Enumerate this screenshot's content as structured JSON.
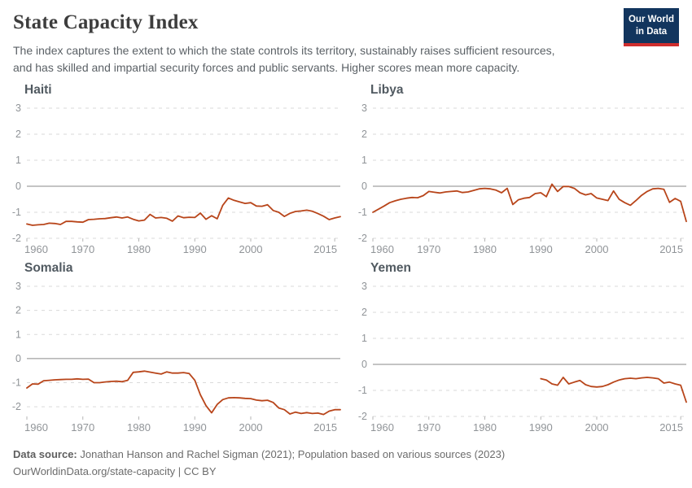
{
  "header": {
    "title": "State Capacity Index",
    "subtitle_lines": [
      "The index captures the extent to which the state controls its territory, sustainably raises sufficient resources,",
      "and has skilled and impartial security forces and public servants. Higher scores mean more capacity."
    ],
    "logo": {
      "line1": "Our World",
      "line2": "in Data",
      "bg_color": "#12355e",
      "accent_color": "#cf2d2d"
    }
  },
  "footer": {
    "source_label": "Data source:",
    "source_text": "Jonathan Hanson and Rachel Sigman (2021); Population based on various sources (2023)",
    "citation": "OurWorldinData.org/state-capacity | CC BY"
  },
  "style_colors": {
    "line": "#b8451a",
    "gridline": "#dadada",
    "zero_line": "#8a8a8a",
    "tick_label": "#909498"
  },
  "chart_data": [
    {
      "type": "line",
      "title": "Haiti",
      "xlim": [
        1960,
        2016
      ],
      "ylim": [
        -2,
        3
      ],
      "xticks": [
        1960,
        1970,
        1980,
        1990,
        2000,
        2015
      ],
      "yticks": [
        3,
        2,
        1,
        0,
        -1,
        -2
      ],
      "grid": "dashed",
      "line_color": "#b8451a",
      "years": [
        1960,
        1961,
        1962,
        1963,
        1964,
        1965,
        1966,
        1967,
        1968,
        1969,
        1970,
        1971,
        1972,
        1973,
        1974,
        1975,
        1976,
        1977,
        1978,
        1979,
        1980,
        1981,
        1982,
        1983,
        1984,
        1985,
        1986,
        1987,
        1988,
        1989,
        1990,
        1991,
        1992,
        1993,
        1994,
        1995,
        1996,
        1997,
        1998,
        1999,
        2000,
        2001,
        2002,
        2003,
        2004,
        2005,
        2006,
        2007,
        2008,
        2009,
        2010,
        2011,
        2012,
        2013,
        2014,
        2015,
        2016
      ],
      "values": [
        -1.45,
        -1.5,
        -1.48,
        -1.47,
        -1.42,
        -1.43,
        -1.47,
        -1.35,
        -1.35,
        -1.37,
        -1.38,
        -1.28,
        -1.27,
        -1.25,
        -1.24,
        -1.21,
        -1.18,
        -1.22,
        -1.18,
        -1.27,
        -1.33,
        -1.3,
        -1.08,
        -1.22,
        -1.2,
        -1.23,
        -1.34,
        -1.14,
        -1.21,
        -1.19,
        -1.2,
        -1.03,
        -1.27,
        -1.13,
        -1.25,
        -0.73,
        -0.45,
        -0.54,
        -0.6,
        -0.66,
        -0.63,
        -0.76,
        -0.77,
        -0.71,
        -0.93,
        -1.0,
        -1.16,
        -1.04,
        -0.97,
        -0.95,
        -0.92,
        -0.96,
        -1.05,
        -1.15,
        -1.28,
        -1.22,
        -1.17
      ]
    },
    {
      "type": "line",
      "title": "Libya",
      "xlim": [
        1960,
        2016
      ],
      "ylim": [
        -2,
        3
      ],
      "xticks": [
        1960,
        1970,
        1980,
        1990,
        2000,
        2015
      ],
      "yticks": [
        3,
        2,
        1,
        0,
        -1,
        -2
      ],
      "grid": "dashed",
      "line_color": "#b8451a",
      "years": [
        1960,
        1961,
        1962,
        1963,
        1964,
        1965,
        1966,
        1967,
        1968,
        1969,
        1970,
        1971,
        1972,
        1973,
        1974,
        1975,
        1976,
        1977,
        1978,
        1979,
        1980,
        1981,
        1982,
        1983,
        1984,
        1985,
        1986,
        1987,
        1988,
        1989,
        1990,
        1991,
        1992,
        1993,
        1994,
        1995,
        1996,
        1997,
        1998,
        1999,
        2000,
        2001,
        2002,
        2003,
        2004,
        2005,
        2006,
        2007,
        2008,
        2009,
        2010,
        2011,
        2012,
        2013,
        2014,
        2015,
        2016
      ],
      "values": [
        -1.0,
        -0.88,
        -0.76,
        -0.63,
        -0.56,
        -0.5,
        -0.46,
        -0.43,
        -0.44,
        -0.36,
        -0.2,
        -0.23,
        -0.26,
        -0.22,
        -0.2,
        -0.18,
        -0.24,
        -0.22,
        -0.16,
        -0.1,
        -0.08,
        -0.1,
        -0.15,
        -0.25,
        -0.08,
        -0.7,
        -0.52,
        -0.46,
        -0.43,
        -0.28,
        -0.25,
        -0.4,
        0.08,
        -0.2,
        -0.01,
        -0.01,
        -0.08,
        -0.25,
        -0.33,
        -0.28,
        -0.45,
        -0.5,
        -0.55,
        -0.18,
        -0.5,
        -0.63,
        -0.73,
        -0.55,
        -0.35,
        -0.2,
        -0.1,
        -0.08,
        -0.12,
        -0.62,
        -0.47,
        -0.58,
        -1.35
      ]
    },
    {
      "type": "line",
      "title": "Somalia",
      "xlim": [
        1960,
        2016
      ],
      "ylim": [
        -2.4,
        3
      ],
      "xticks": [
        1960,
        1970,
        1980,
        1990,
        2000,
        2015
      ],
      "yticks": [
        3,
        2,
        1,
        0,
        -1,
        -2
      ],
      "grid": "dashed",
      "line_color": "#b8451a",
      "years": [
        1960,
        1961,
        1962,
        1963,
        1964,
        1965,
        1966,
        1967,
        1968,
        1969,
        1970,
        1971,
        1972,
        1973,
        1974,
        1975,
        1976,
        1977,
        1978,
        1979,
        1980,
        1981,
        1982,
        1983,
        1984,
        1985,
        1986,
        1987,
        1988,
        1989,
        1990,
        1991,
        1992,
        1993,
        1994,
        1995,
        1996,
        1997,
        1998,
        1999,
        2000,
        2001,
        2002,
        2003,
        2004,
        2005,
        2006,
        2007,
        2008,
        2009,
        2010,
        2011,
        2012,
        2013,
        2014,
        2015,
        2016
      ],
      "values": [
        -1.22,
        -1.05,
        -1.06,
        -0.92,
        -0.9,
        -0.88,
        -0.87,
        -0.86,
        -0.86,
        -0.84,
        -0.86,
        -0.85,
        -1.0,
        -1.0,
        -0.97,
        -0.95,
        -0.94,
        -0.96,
        -0.9,
        -0.57,
        -0.55,
        -0.52,
        -0.56,
        -0.6,
        -0.64,
        -0.55,
        -0.6,
        -0.6,
        -0.58,
        -0.62,
        -0.9,
        -1.5,
        -1.95,
        -2.25,
        -1.9,
        -1.7,
        -1.63,
        -1.62,
        -1.63,
        -1.65,
        -1.66,
        -1.72,
        -1.75,
        -1.73,
        -1.82,
        -2.05,
        -2.12,
        -2.3,
        -2.22,
        -2.28,
        -2.24,
        -2.28,
        -2.26,
        -2.32,
        -2.18,
        -2.12,
        -2.12
      ]
    },
    {
      "type": "line",
      "title": "Yemen",
      "xlim": [
        1960,
        2016
      ],
      "ylim": [
        -2,
        3
      ],
      "xticks": [
        1960,
        1970,
        1980,
        1990,
        2000,
        2015
      ],
      "yticks": [
        3,
        2,
        1,
        0,
        -1,
        -2
      ],
      "grid": "dashed",
      "line_color": "#b8451a",
      "years": [
        1990,
        1991,
        1992,
        1993,
        1994,
        1995,
        1996,
        1997,
        1998,
        1999,
        2000,
        2001,
        2002,
        2003,
        2004,
        2005,
        2006,
        2007,
        2008,
        2009,
        2010,
        2011,
        2012,
        2013,
        2014,
        2015,
        2016
      ],
      "values": [
        -0.55,
        -0.6,
        -0.75,
        -0.8,
        -0.5,
        -0.75,
        -0.68,
        -0.62,
        -0.78,
        -0.85,
        -0.87,
        -0.85,
        -0.78,
        -0.68,
        -0.6,
        -0.55,
        -0.53,
        -0.55,
        -0.52,
        -0.5,
        -0.52,
        -0.55,
        -0.72,
        -0.68,
        -0.75,
        -0.8,
        -1.45
      ]
    }
  ]
}
